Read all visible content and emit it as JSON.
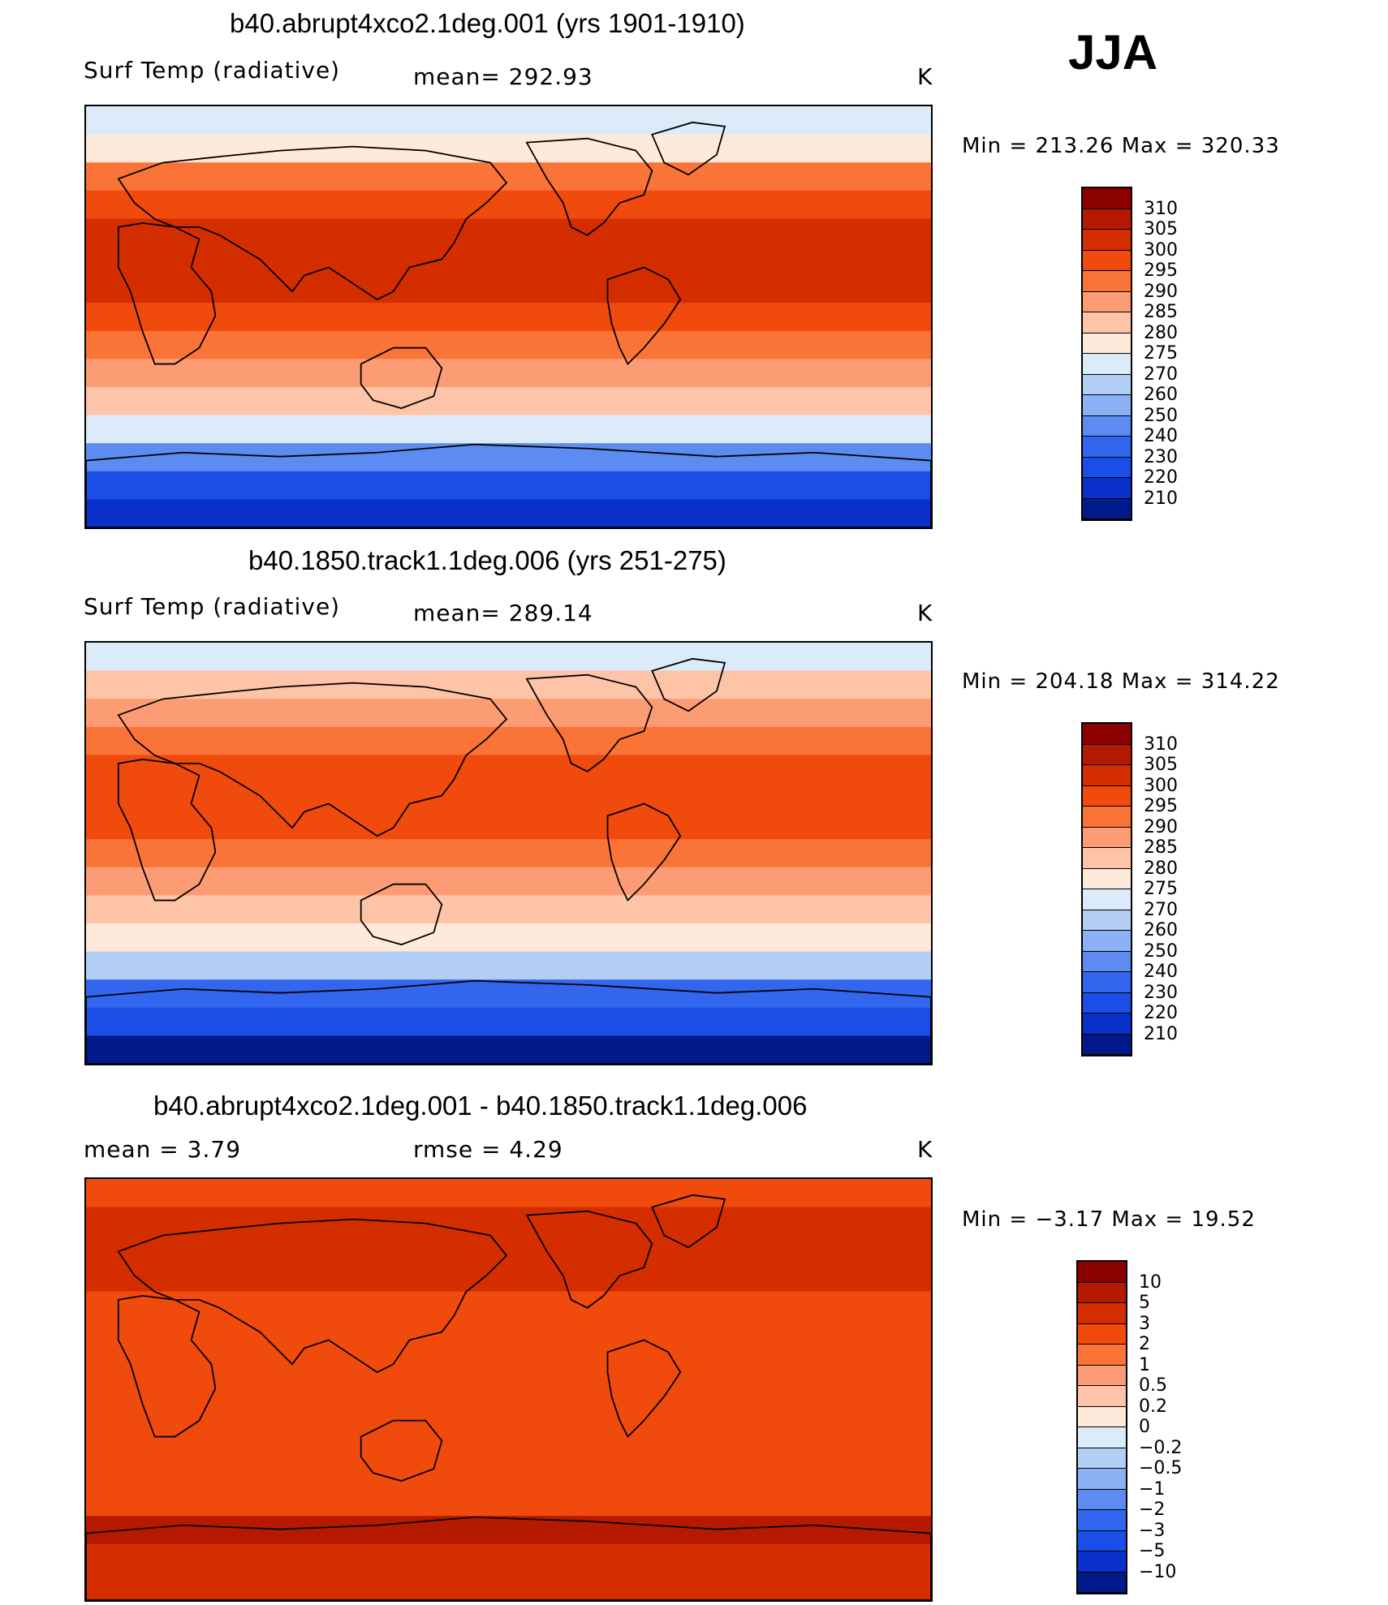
{
  "season": "JJA",
  "panels": [
    {
      "title": "b40.abrupt4xco2.1deg.001 (yrs 1901-1910)",
      "left_label": "Surf Temp (radiative)",
      "center_label": "mean= 292.93",
      "units": "K",
      "minmax": "Min = 213.26 Max = 320.33",
      "colorbar_levels": [
        "310",
        "305",
        "300",
        "295",
        "290",
        "285",
        "280",
        "275",
        "270",
        "260",
        "250",
        "240",
        "230",
        "220",
        "210"
      ],
      "colorbar_colors": [
        "#8b0000",
        "#b51a00",
        "#d42e00",
        "#f04a0c",
        "#fa7337",
        "#fc9c74",
        "#fdc4a7",
        "#feeadb",
        "#dbebf9",
        "#b2cef5",
        "#8cb1f5",
        "#5c8cf2",
        "#3366ee",
        "#1a4ee6",
        "#0a30cc",
        "#001a8b"
      ],
      "map_bands": [
        "#dbebf9",
        "#feeadb",
        "#fa7337",
        "#f04a0c",
        "#d42e00",
        "#d42e00",
        "#d42e00",
        "#f04a0c",
        "#fa7337",
        "#fc9c74",
        "#fdc4a7",
        "#dbebf9",
        "#5c8cf2",
        "#1a4ee6",
        "#0a30cc"
      ]
    },
    {
      "title": "b40.1850.track1.1deg.006 (yrs 251-275)",
      "left_label": "Surf Temp (radiative)",
      "center_label": "mean= 289.14",
      "units": "K",
      "minmax": "Min = 204.18 Max = 314.22",
      "colorbar_levels": [
        "310",
        "305",
        "300",
        "295",
        "290",
        "285",
        "280",
        "275",
        "270",
        "260",
        "250",
        "240",
        "230",
        "220",
        "210"
      ],
      "colorbar_colors": [
        "#8b0000",
        "#b51a00",
        "#d42e00",
        "#f04a0c",
        "#fa7337",
        "#fc9c74",
        "#fdc4a7",
        "#feeadb",
        "#dbebf9",
        "#b2cef5",
        "#8cb1f5",
        "#5c8cf2",
        "#3366ee",
        "#1a4ee6",
        "#0a30cc",
        "#001a8b"
      ],
      "map_bands": [
        "#dbebf9",
        "#fdc4a7",
        "#fc9c74",
        "#fa7337",
        "#f04a0c",
        "#f04a0c",
        "#f04a0c",
        "#fa7337",
        "#fc9c74",
        "#fdc4a7",
        "#feeadb",
        "#b2cef5",
        "#3366ee",
        "#1a4ee6",
        "#001a8b"
      ]
    },
    {
      "title": "b40.abrupt4xco2.1deg.001 - b40.1850.track1.1deg.006",
      "left_label": "mean =    3.79",
      "center_label": "rmse =    4.29",
      "units": "K",
      "minmax": "Min =   −3.17 Max =   19.52",
      "colorbar_levels": [
        "10",
        "5",
        "3",
        "2",
        "1",
        "0.5",
        "0.2",
        "0",
        "−0.2",
        "−0.5",
        "−1",
        "−2",
        "−3",
        "−5",
        "−10"
      ],
      "colorbar_colors": [
        "#8b0000",
        "#b51a00",
        "#d42e00",
        "#f04a0c",
        "#fa7337",
        "#fc9c74",
        "#fdc4a7",
        "#feeadb",
        "#dbebf9",
        "#b2cef5",
        "#8cb1f5",
        "#5c8cf2",
        "#3366ee",
        "#1a4ee6",
        "#0a30cc",
        "#001a8b"
      ],
      "map_bands": [
        "#f04a0c",
        "#d42e00",
        "#d42e00",
        "#d42e00",
        "#f04a0c",
        "#f04a0c",
        "#f04a0c",
        "#f04a0c",
        "#f04a0c",
        "#f04a0c",
        "#f04a0c",
        "#f04a0c",
        "#b51a00",
        "#d42e00",
        "#d42e00"
      ]
    }
  ]
}
